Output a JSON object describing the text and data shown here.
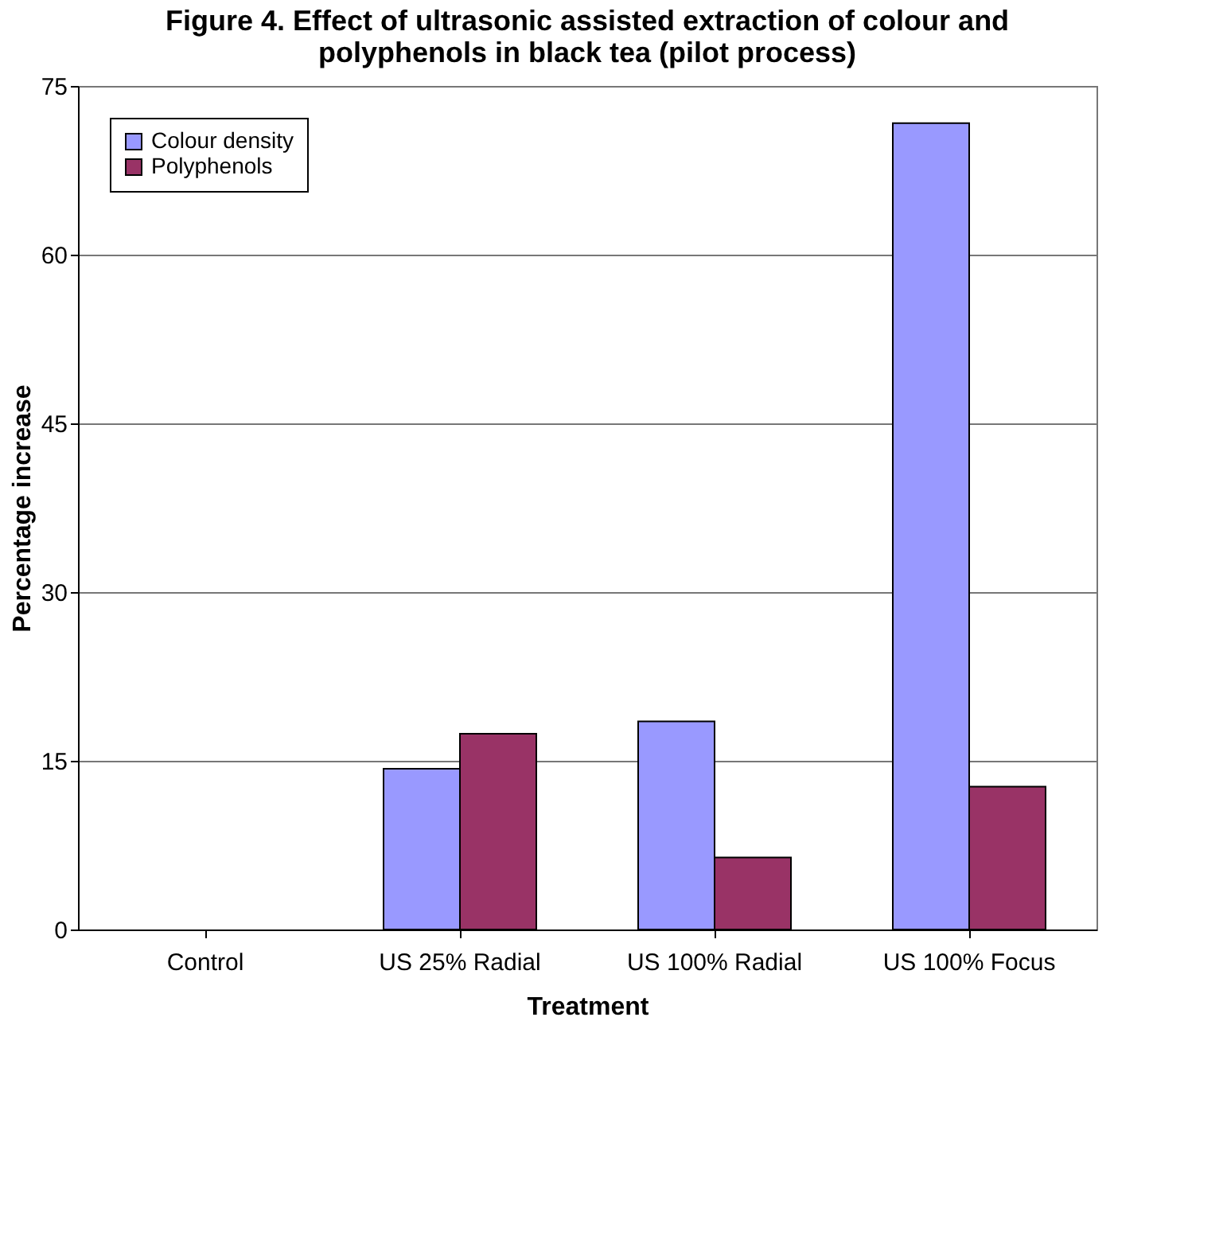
{
  "chart_data": {
    "type": "bar",
    "title": [
      "Figure 4. Effect of ultrasonic assisted extraction of colour and",
      "polyphenols in black tea (pilot process)"
    ],
    "xlabel": "Treatment",
    "ylabel": "Percentage increase",
    "categories": [
      "Control",
      "US 25% Radial",
      "US 100% Radial",
      "US 100% Focus"
    ],
    "series": [
      {
        "name": "Colour density",
        "color": "#9999ff",
        "values": [
          null,
          14.3,
          18.5,
          71.7
        ]
      },
      {
        "name": "Polyphenols",
        "color": "#993366",
        "values": [
          null,
          17.4,
          6.4,
          12.7
        ]
      }
    ],
    "ylim": [
      0,
      75
    ],
    "yticks": [
      0,
      15,
      30,
      45,
      60,
      75
    ],
    "grid": "y",
    "legend": "top left"
  }
}
